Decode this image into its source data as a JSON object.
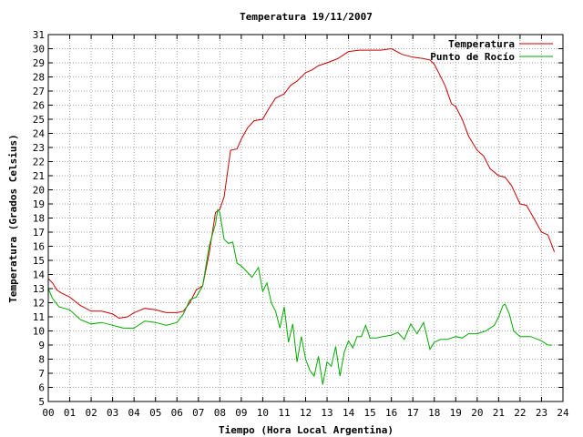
{
  "chart_data": {
    "type": "line",
    "title": "Temperatura 19/11/2007",
    "xlabel": "Tiempo (Hora Local Argentina)",
    "ylabel": "Temperatura (Grados Celsius)",
    "xlim": [
      0,
      24
    ],
    "ylim": [
      5,
      31
    ],
    "x_ticks": [
      "00",
      "01",
      "02",
      "03",
      "04",
      "05",
      "06",
      "07",
      "08",
      "09",
      "10",
      "11",
      "12",
      "13",
      "14",
      "15",
      "16",
      "17",
      "18",
      "19",
      "20",
      "21",
      "22",
      "23",
      "24"
    ],
    "y_ticks": [
      "5",
      "6",
      "7",
      "8",
      "9",
      "10",
      "11",
      "12",
      "13",
      "14",
      "15",
      "16",
      "17",
      "18",
      "19",
      "20",
      "21",
      "22",
      "23",
      "24",
      "25",
      "26",
      "27",
      "28",
      "29",
      "30",
      "31"
    ],
    "grid": true,
    "legend_position": "top-right",
    "series": [
      {
        "name": "Temperatura",
        "color": "#cc0000",
        "x": [
          0.0,
          0.2,
          0.4,
          0.6,
          1.0,
          1.5,
          2.0,
          2.5,
          3.0,
          3.3,
          3.7,
          4.0,
          4.5,
          5.0,
          5.5,
          6.0,
          6.3,
          6.6,
          6.9,
          7.2,
          7.5,
          7.8,
          8.0,
          8.2,
          8.5,
          8.8,
          9.0,
          9.3,
          9.6,
          10.0,
          10.3,
          10.6,
          11.0,
          11.3,
          11.6,
          12.0,
          12.3,
          12.6,
          13.0,
          13.5,
          14.0,
          14.5,
          15.0,
          15.5,
          16.0,
          16.5,
          17.0,
          17.5,
          17.8,
          18.0,
          18.2,
          18.5,
          18.8,
          19.0,
          19.3,
          19.6,
          20.0,
          20.3,
          20.6,
          21.0,
          21.3,
          21.6,
          22.0,
          22.3,
          22.6,
          23.0,
          23.3,
          23.6
        ],
        "y": [
          13.7,
          13.4,
          12.9,
          12.7,
          12.4,
          11.8,
          11.4,
          11.4,
          11.2,
          10.9,
          11.0,
          11.3,
          11.6,
          11.5,
          11.3,
          11.3,
          11.4,
          12.0,
          12.9,
          13.2,
          15.5,
          18.4,
          18.6,
          19.5,
          22.8,
          22.9,
          23.6,
          24.4,
          24.9,
          25.0,
          25.8,
          26.5,
          26.8,
          27.4,
          27.7,
          28.3,
          28.5,
          28.8,
          29.0,
          29.3,
          29.8,
          29.9,
          29.9,
          29.9,
          30.0,
          29.6,
          29.4,
          29.3,
          29.2,
          28.9,
          28.3,
          27.4,
          26.1,
          25.9,
          25.0,
          23.8,
          22.8,
          22.4,
          21.5,
          21.0,
          20.9,
          20.3,
          19.0,
          18.9,
          18.1,
          17.0,
          16.8,
          15.6
        ]
      },
      {
        "name": "Punto de Rocío",
        "color": "#00aa00",
        "x": [
          0.0,
          0.2,
          0.5,
          1.0,
          1.5,
          2.0,
          2.5,
          3.0,
          3.5,
          4.0,
          4.5,
          5.0,
          5.5,
          6.0,
          6.3,
          6.6,
          6.9,
          7.2,
          7.5,
          7.8,
          7.9,
          8.0,
          8.2,
          8.4,
          8.6,
          8.8,
          9.0,
          9.2,
          9.5,
          9.8,
          10.0,
          10.2,
          10.4,
          10.6,
          10.8,
          11.0,
          11.2,
          11.4,
          11.6,
          11.8,
          12.0,
          12.2,
          12.4,
          12.6,
          12.8,
          13.0,
          13.2,
          13.4,
          13.6,
          13.8,
          14.0,
          14.2,
          14.4,
          14.6,
          14.8,
          15.0,
          15.3,
          15.6,
          16.0,
          16.3,
          16.6,
          16.9,
          17.2,
          17.5,
          17.8,
          18.0,
          18.3,
          18.6,
          19.0,
          19.3,
          19.6,
          20.0,
          20.4,
          20.8,
          21.0,
          21.2,
          21.3,
          21.5,
          21.7,
          22.0,
          22.5,
          23.0,
          23.3,
          23.5
        ],
        "y": [
          13.0,
          12.3,
          11.7,
          11.5,
          10.8,
          10.5,
          10.6,
          10.4,
          10.2,
          10.2,
          10.7,
          10.6,
          10.4,
          10.6,
          11.2,
          12.2,
          12.4,
          13.2,
          16.0,
          17.6,
          18.6,
          18.4,
          16.5,
          16.2,
          16.3,
          14.8,
          14.6,
          14.3,
          13.8,
          14.5,
          12.8,
          13.4,
          12.0,
          11.4,
          10.2,
          11.7,
          9.2,
          10.5,
          7.8,
          9.6,
          8.0,
          7.2,
          6.8,
          8.2,
          6.2,
          7.8,
          7.5,
          8.9,
          6.8,
          8.5,
          9.3,
          8.8,
          9.6,
          9.6,
          10.4,
          9.5,
          9.5,
          9.6,
          9.7,
          9.9,
          9.4,
          10.5,
          9.8,
          10.6,
          8.7,
          9.2,
          9.4,
          9.4,
          9.6,
          9.5,
          9.8,
          9.8,
          10.0,
          10.4,
          11.0,
          11.8,
          11.9,
          11.2,
          10.0,
          9.6,
          9.6,
          9.3,
          9.0,
          9.0
        ]
      }
    ]
  }
}
